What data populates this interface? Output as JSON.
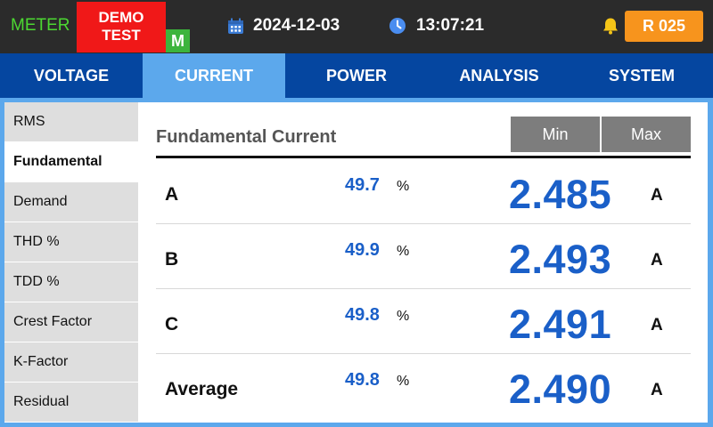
{
  "header": {
    "meter_label": "METER",
    "demo_line1": "DEMO",
    "demo_line2": "TEST",
    "mode_badge": "M",
    "date": "2024-12-03",
    "time": "13:07:21",
    "record_label": "R 025",
    "icons": [
      "calendar-icon",
      "clock-icon",
      "bell-icon"
    ]
  },
  "nav": {
    "tabs": [
      {
        "label": "VOLTAGE"
      },
      {
        "label": "CURRENT"
      },
      {
        "label": "POWER"
      },
      {
        "label": "ANALYSIS"
      },
      {
        "label": "SYSTEM"
      }
    ],
    "active": "CURRENT"
  },
  "sidebar": {
    "items": [
      {
        "label": "RMS"
      },
      {
        "label": "Fundamental"
      },
      {
        "label": "Demand"
      },
      {
        "label": "THD %"
      },
      {
        "label": "TDD %"
      },
      {
        "label": "Crest Factor"
      },
      {
        "label": "K-Factor"
      },
      {
        "label": "Residual"
      }
    ],
    "active": "Fundamental"
  },
  "main": {
    "title": "Fundamental Current",
    "min_label": "Min",
    "max_label": "Max",
    "rows": [
      {
        "label": "A",
        "percent": "49.7",
        "percent_unit": "%",
        "value": "2.485",
        "unit": "A"
      },
      {
        "label": "B",
        "percent": "49.9",
        "percent_unit": "%",
        "value": "2.493",
        "unit": "A"
      },
      {
        "label": "C",
        "percent": "49.8",
        "percent_unit": "%",
        "value": "2.491",
        "unit": "A"
      },
      {
        "label": "Average",
        "percent": "49.8",
        "percent_unit": "%",
        "value": "2.490",
        "unit": "A"
      }
    ]
  },
  "colors": {
    "nav_bg": "#0546a0",
    "nav_active": "#5ca8ec",
    "value_blue": "#1a5fc8",
    "demo_red": "#f01818",
    "mode_green": "#3cb43c",
    "record_orange": "#f7941d",
    "meter_green": "#4cd832"
  }
}
